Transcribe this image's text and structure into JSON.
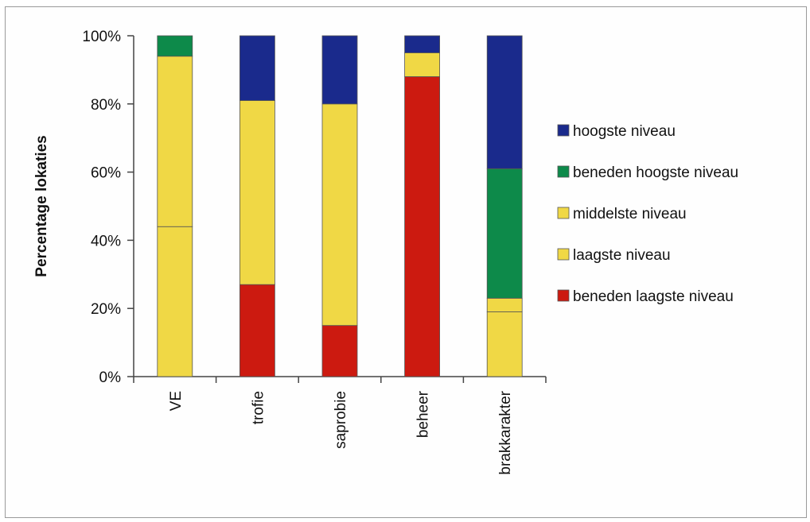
{
  "chart_data": {
    "type": "bar",
    "stacked": true,
    "percent": true,
    "ylabel": "Percentage lokaties",
    "xlabel": "",
    "ylim": [
      0,
      100
    ],
    "yticks": [
      "0%",
      "20%",
      "40%",
      "60%",
      "80%",
      "100%"
    ],
    "categories": [
      "VE",
      "trofie",
      "saprobie",
      "beheer",
      "brakkarakter"
    ],
    "series": [
      {
        "name": "beneden laagste niveau",
        "color": "#cc1a10",
        "values": [
          0,
          27,
          15,
          88,
          0
        ]
      },
      {
        "name": "laagste niveau",
        "color": "#f0d845",
        "values": [
          44,
          0,
          0,
          0,
          19
        ]
      },
      {
        "name": "middelste niveau",
        "color": "#f0d845",
        "values": [
          50,
          54,
          65,
          7,
          4
        ]
      },
      {
        "name": "beneden hoogste niveau",
        "color": "#0d8a4a",
        "values": [
          6,
          0,
          0,
          0,
          38
        ]
      },
      {
        "name": "hoogste niveau",
        "color": "#1a2a8c",
        "values": [
          0,
          19,
          20,
          5,
          39
        ]
      }
    ],
    "legend_order": [
      "hoogste niveau",
      "beneden hoogste niveau",
      "middelste niveau",
      "laagste niveau",
      "beneden laagste niveau"
    ],
    "legend_position": "right",
    "grid": false
  }
}
